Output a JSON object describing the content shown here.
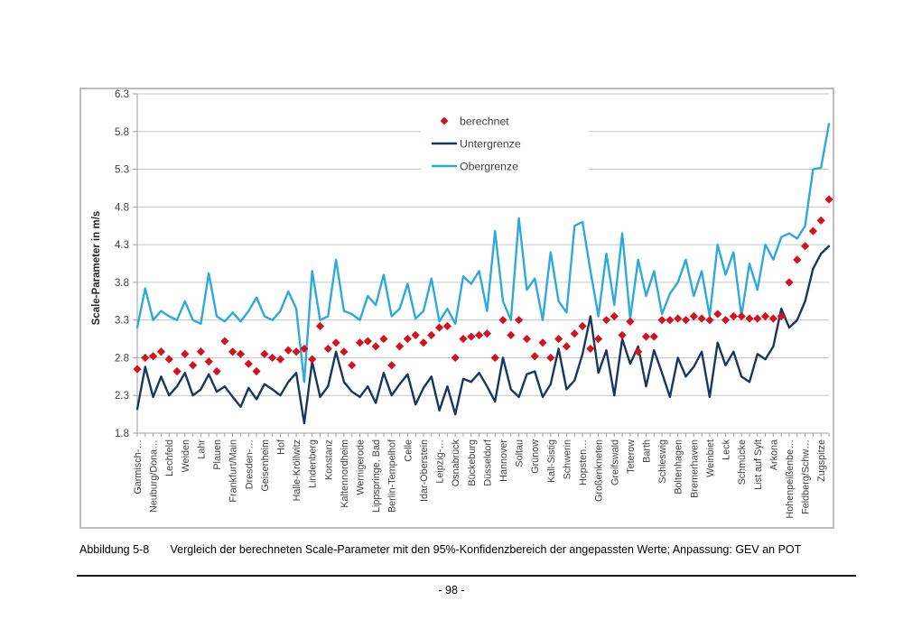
{
  "document": {
    "figure_caption": {
      "label": "Abbildung 5-8",
      "text": "Vergleich der berechneten Scale-Parameter mit den 95%-Konfidenzbereich der angepassten Werte; Anpassung: GEV an POT"
    },
    "page_number": "- 98 -"
  },
  "chart_data": {
    "type": "line",
    "title": "",
    "xlabel": "",
    "ylabel": "Scale-Parameter in m/s",
    "ylim": [
      1.8,
      6.3
    ],
    "yticks": [
      6.3,
      5.8,
      5.3,
      4.8,
      4.3,
      3.8,
      3.3,
      2.8,
      2.3,
      1.8
    ],
    "grid": "horizontal-only",
    "x_label_rotation": -90,
    "points_per_label": 2,
    "legend_position": "inside-top-center",
    "legend": [
      {
        "label": "berechnet",
        "marker": "diamond",
        "color": "#D4121E"
      },
      {
        "label": "Untergrenze",
        "marker": "line",
        "color": "#17375E"
      },
      {
        "label": "Obergrenze",
        "marker": "line",
        "color": "#2EA9DC"
      }
    ],
    "categories": [
      "Garmisch-…",
      "Neuburg/Dona…",
      "Lechfeld",
      "Weiden",
      "Lahr",
      "Plauen",
      "Frankfurt/Main",
      "Dresden-…",
      "Geisenheim",
      "Hof",
      "Halle-Kröllwitz",
      "Lindenberg",
      "Konstanz",
      "Kaltennordheim",
      "Wernigerode",
      "Lippspringe, Bad",
      "Berlin-Tempelhof",
      "Celle",
      "Idar-Oberstein",
      "Leipzig-…",
      "Osnabrück",
      "Bückeburg",
      "Düsseldorf",
      "Hannover",
      "Soltau",
      "Grünow",
      "Kall-Sistig",
      "Schwerin",
      "Hopsten…",
      "Großenkneten",
      "Greifswald",
      "Teterow",
      "Barth",
      "Schleswig",
      "Boltenhagen",
      "Bremerhaven",
      "Weinbiet",
      "Leck",
      "Schmücke",
      "List auf Sylt",
      "Arkona",
      "Hohenpeißenbe…",
      "Feldberg/Schw…",
      "Zugspitze"
    ],
    "series": [
      {
        "name": "berechnet",
        "style": "scatter",
        "marker": "diamond",
        "color": "#D4121E",
        "values": [
          2.65,
          2.8,
          2.82,
          2.88,
          2.78,
          2.62,
          2.85,
          2.7,
          2.88,
          2.75,
          2.62,
          3.02,
          2.88,
          2.85,
          2.72,
          2.62,
          2.85,
          2.8,
          2.78,
          2.9,
          2.88,
          2.92,
          2.78,
          3.22,
          2.92,
          3.0,
          2.88,
          2.7,
          3.0,
          3.02,
          2.95,
          3.05,
          2.7,
          2.95,
          3.05,
          3.1,
          3.0,
          3.1,
          3.2,
          3.22,
          2.8,
          3.05,
          3.08,
          3.1,
          3.12,
          2.8,
          3.3,
          3.1,
          3.3,
          3.05,
          2.82,
          3.0,
          2.8,
          3.05,
          2.95,
          3.12,
          3.22,
          2.92,
          3.05,
          3.3,
          3.35,
          3.1,
          3.28,
          2.88,
          3.08,
          3.08,
          3.3,
          3.3,
          3.32,
          3.3,
          3.35,
          3.32,
          3.3,
          3.38,
          3.3,
          3.35,
          3.35,
          3.32,
          3.32,
          3.35,
          3.32,
          3.35,
          3.8,
          4.1,
          4.28,
          4.48,
          4.62,
          4.9
        ]
      },
      {
        "name": "Untergrenze",
        "style": "line",
        "color": "#17375E",
        "values": [
          2.12,
          2.68,
          2.28,
          2.55,
          2.3,
          2.42,
          2.6,
          2.3,
          2.38,
          2.58,
          2.35,
          2.42,
          2.28,
          2.15,
          2.4,
          2.25,
          2.45,
          2.38,
          2.3,
          2.48,
          2.6,
          1.93,
          2.75,
          2.28,
          2.42,
          2.88,
          2.48,
          2.35,
          2.28,
          2.42,
          2.2,
          2.6,
          2.3,
          2.45,
          2.58,
          2.18,
          2.4,
          2.55,
          2.1,
          2.42,
          2.05,
          2.52,
          2.48,
          2.6,
          2.42,
          2.22,
          2.8,
          2.38,
          2.28,
          2.58,
          2.62,
          2.28,
          2.45,
          2.92,
          2.38,
          2.5,
          2.85,
          3.35,
          2.6,
          2.9,
          2.3,
          3.05,
          2.72,
          2.95,
          2.42,
          2.9,
          2.6,
          2.28,
          2.8,
          2.55,
          2.68,
          2.88,
          2.28,
          3.0,
          2.7,
          2.88,
          2.55,
          2.48,
          2.85,
          2.78,
          2.95,
          3.45,
          3.2,
          3.3,
          3.55,
          3.98,
          4.18,
          4.28
        ]
      },
      {
        "name": "Obergrenze",
        "style": "line",
        "color": "#2EA9DC",
        "values": [
          3.2,
          3.72,
          3.3,
          3.42,
          3.35,
          3.3,
          3.55,
          3.3,
          3.25,
          3.92,
          3.35,
          3.28,
          3.4,
          3.28,
          3.42,
          3.6,
          3.35,
          3.3,
          3.42,
          3.68,
          3.45,
          2.48,
          3.95,
          3.3,
          3.35,
          4.1,
          3.42,
          3.38,
          3.3,
          3.62,
          3.5,
          3.9,
          3.35,
          3.45,
          3.78,
          3.32,
          3.42,
          3.85,
          3.28,
          3.45,
          3.25,
          3.88,
          3.78,
          3.95,
          3.42,
          4.48,
          3.55,
          3.3,
          4.65,
          3.7,
          3.85,
          3.3,
          4.2,
          3.55,
          3.4,
          4.55,
          4.6,
          3.95,
          3.35,
          4.18,
          3.5,
          4.45,
          3.32,
          4.1,
          3.62,
          3.95,
          3.38,
          3.65,
          3.8,
          4.1,
          3.62,
          3.95,
          3.35,
          4.3,
          3.9,
          4.2,
          3.35,
          4.05,
          3.7,
          4.3,
          4.1,
          4.4,
          4.45,
          4.38,
          4.55,
          5.3,
          5.32,
          5.9
        ]
      }
    ],
    "colors": {
      "grid": "#C6C6C6",
      "axis": "#A0A0A0",
      "text": "#3F3F3F",
      "axis_title": "#262626",
      "frame": "#A8A8A8"
    }
  }
}
